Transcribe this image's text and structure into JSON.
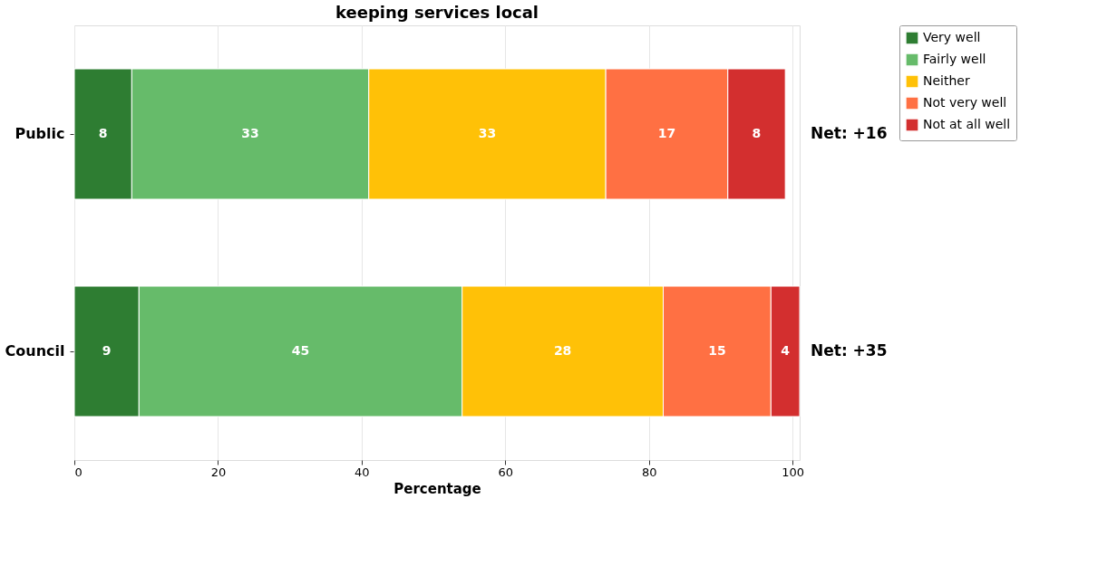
{
  "chart_data": {
    "type": "bar",
    "orientation": "horizontal",
    "stacked": true,
    "title": "keeping services local",
    "xlabel": "Percentage",
    "categories": [
      "Public",
      "Council"
    ],
    "series": [
      {
        "name": "Very well",
        "color": "#2e7d32",
        "values": [
          8,
          9
        ]
      },
      {
        "name": "Fairly well",
        "color": "#66bb6a",
        "values": [
          33,
          45
        ]
      },
      {
        "name": "Neither",
        "color": "#ffc107",
        "values": [
          33,
          28
        ]
      },
      {
        "name": "Not very well",
        "color": "#ff7043",
        "values": [
          17,
          15
        ]
      },
      {
        "name": "Not at all well",
        "color": "#d32f2f",
        "values": [
          8,
          4
        ]
      }
    ],
    "xlim": [
      0,
      101
    ],
    "xticks": [
      0,
      20,
      40,
      60,
      80,
      100
    ],
    "grid": "x",
    "legend": "right",
    "data_labels": true,
    "annotations": [
      "Net: +16",
      "Net: +35"
    ]
  }
}
